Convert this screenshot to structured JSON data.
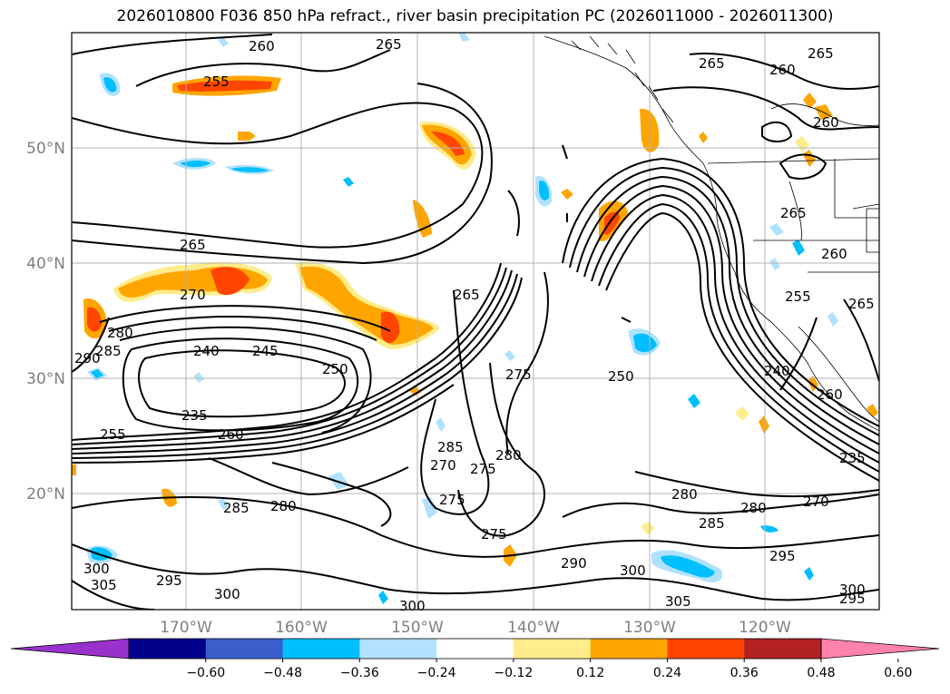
{
  "title": "2026010800 F036 850 hPa refract., river basin precipitation PC (2026011000 - 2026011300)",
  "lat_labels": [
    "50°N",
    "40°N",
    "30°N",
    "20°N"
  ],
  "lon_labels": [
    "170°W",
    "160°W",
    "150°W",
    "140°W",
    "130°W",
    "120°W"
  ],
  "colorbar": {
    "tick_labels": [
      "−0.60",
      "−0.48",
      "−0.36",
      "−0.24",
      "−0.12",
      "0.12",
      "0.24",
      "0.36",
      "0.48",
      "0.60"
    ],
    "colors": [
      "#9932cc",
      "#00008b",
      "#3a5fcd",
      "#00bfff",
      "#b0e2ff",
      "#ffffff",
      "#ffec8b",
      "#ffa500",
      "#ff4500",
      "#b22222",
      "#ff82ab"
    ]
  },
  "contour_labels": [
    "260",
    "265",
    "255",
    "260",
    "265",
    "260",
    "265",
    "265",
    "260",
    "265",
    "270",
    "265",
    "265",
    "255",
    "290",
    "285",
    "280",
    "240",
    "245",
    "250",
    "250",
    "260",
    "240",
    "235",
    "255",
    "260",
    "275",
    "285",
    "280",
    "275",
    "270",
    "275",
    "280",
    "275",
    "285",
    "280",
    "270",
    "235",
    "280",
    "285",
    "290",
    "295",
    "300",
    "305",
    "295",
    "300",
    "300",
    "295",
    "300",
    "305",
    "300"
  ]
}
